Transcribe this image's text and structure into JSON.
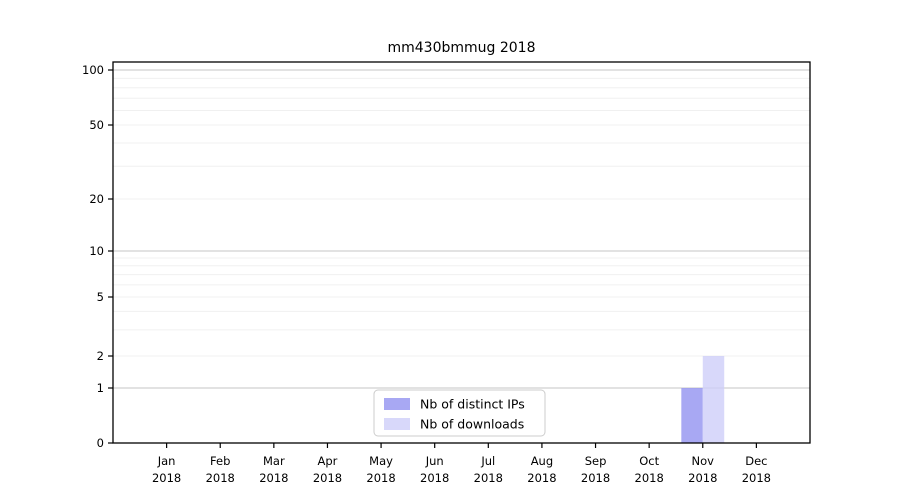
{
  "chart_data": {
    "type": "bar",
    "title": "mm430bmmug 2018",
    "categories": [
      "Jan",
      "Feb",
      "Mar",
      "Apr",
      "May",
      "Jun",
      "Jul",
      "Aug",
      "Sep",
      "Oct",
      "Nov",
      "Dec"
    ],
    "category_year": "2018",
    "series": [
      {
        "name": "Nb of distinct IPs",
        "color": "#9292f0",
        "opacity": 0.8,
        "values": [
          0,
          0,
          0,
          0,
          0,
          0,
          0,
          0,
          0,
          0,
          1,
          0
        ]
      },
      {
        "name": "Nb of downloads",
        "color": "#cecef9",
        "opacity": 0.8,
        "values": [
          0,
          0,
          0,
          0,
          0,
          0,
          0,
          0,
          0,
          0,
          2,
          0
        ]
      }
    ],
    "xlabel": "",
    "ylabel": "",
    "yscale": "symlog-like",
    "ylim": [
      0,
      110
    ],
    "y_ticks": [
      0,
      1,
      2,
      5,
      10,
      20,
      50,
      100
    ],
    "y_major_gridlines": [
      1,
      10,
      100
    ],
    "y_minor_gridlines": [
      3,
      4,
      6,
      7,
      8,
      9,
      30,
      40,
      60,
      70,
      80,
      90
    ],
    "grid": true,
    "legend": {
      "position": "lower center",
      "entries": [
        "Nb of distinct IPs",
        "Nb of downloads"
      ]
    },
    "colors": {
      "major_grid": "#c6c6c6",
      "minor_grid": "#f0f0f0",
      "axis": "#000000",
      "legend_border": "#cccccc",
      "background": "#ffffff"
    }
  }
}
